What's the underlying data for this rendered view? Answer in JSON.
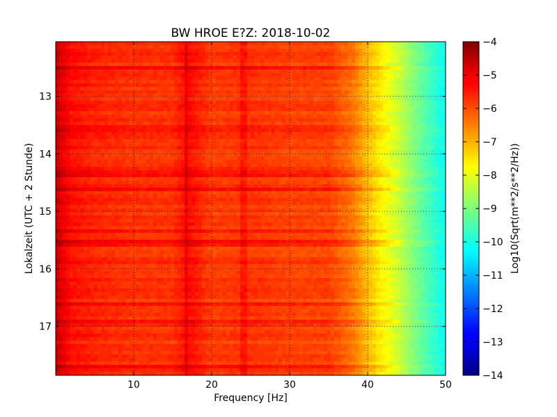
{
  "chart_data": {
    "type": "heatmap",
    "title": "BW HROE E?Z: 2018-10-02",
    "xlabel": "Frequency [Hz]",
    "ylabel": "Lokalzeit (UTC + 2 Stunde)",
    "colorbar_label": "Log10(Sqrt(m**2/s**2/Hz))",
    "colormap": "jet",
    "xlim": [
      0,
      50
    ],
    "ylim": [
      17.85,
      12.05
    ],
    "y_inverted": true,
    "clim": [
      -14,
      -4
    ],
    "grid": true,
    "x_ticks": [
      10,
      20,
      30,
      40,
      50
    ],
    "x_tick_labels": [
      "10",
      "20",
      "30",
      "40",
      "50"
    ],
    "y_ticks": [
      13,
      14,
      15,
      16,
      17
    ],
    "y_tick_labels": [
      "13",
      "14",
      "15",
      "16",
      "17"
    ],
    "colorbar_ticks": [
      -4,
      -5,
      -6,
      -7,
      -8,
      -9,
      -10,
      -11,
      -12,
      -13,
      -14
    ],
    "colorbar_tick_labels": [
      "−4",
      "−5",
      "−6",
      "−7",
      "−8",
      "−9",
      "−10",
      "−11",
      "−12",
      "−13",
      "−14"
    ],
    "spectrum_profile": {
      "frequency_hz": [
        0,
        1,
        2,
        5,
        10,
        15,
        17,
        20,
        25,
        30,
        35,
        38,
        40,
        42,
        44,
        46,
        48,
        50
      ],
      "log_amplitude": [
        -4.7,
        -5.1,
        -5.4,
        -5.6,
        -5.75,
        -5.75,
        -5.35,
        -5.85,
        -5.75,
        -5.9,
        -5.9,
        -6.4,
        -7.1,
        -7.7,
        -8.3,
        -9.0,
        -9.6,
        -10.2
      ]
    },
    "notable_rows_hours": [
      12.5,
      13.55,
      14.35,
      14.6,
      15.35,
      15.55,
      15.9,
      16.6,
      16.93,
      17.7
    ],
    "notable_columns_hz": [
      16.7,
      24.0
    ]
  }
}
